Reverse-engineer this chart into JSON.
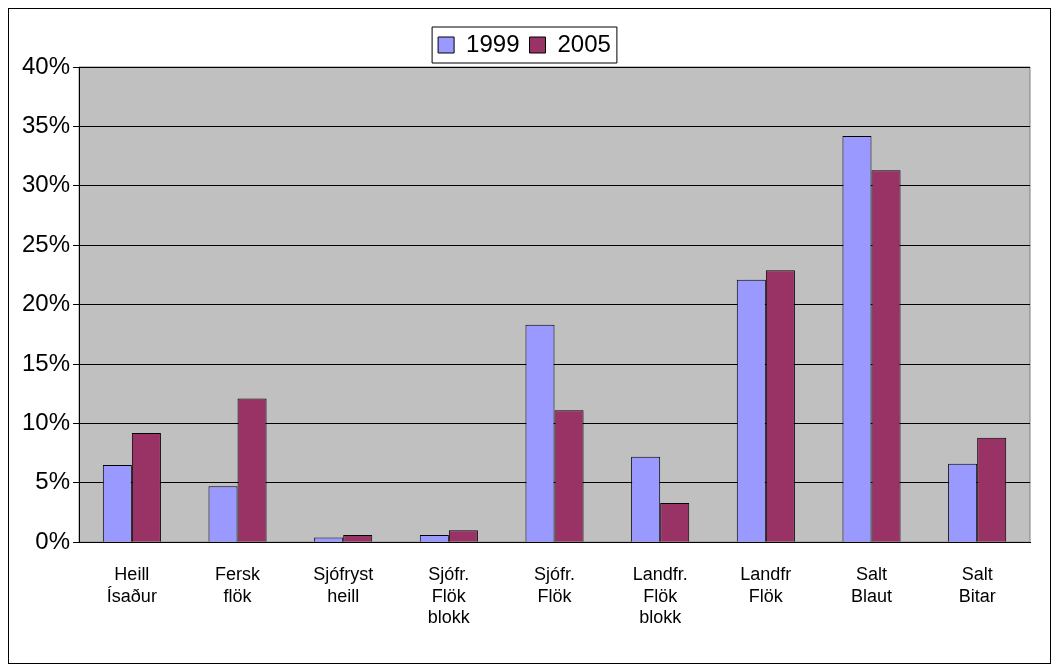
{
  "chart_data": {
    "type": "bar",
    "categories": [
      "Heill Ísaður",
      "Fersk flök",
      "Sjófryst heill",
      "Sjófr. Flök blokk",
      "Sjófr. Flök",
      "Landfr. Flök blokk",
      "Landfr Flök",
      "Salt Blaut",
      "Salt Bitar"
    ],
    "series": [
      {
        "name": "1999",
        "color": "#9999ff",
        "values": [
          6.5,
          4.7,
          0.4,
          0.6,
          18.3,
          7.2,
          22.1,
          34.2,
          6.6
        ]
      },
      {
        "name": "2005",
        "color": "#993366",
        "values": [
          9.2,
          12.1,
          0.6,
          1.0,
          11.1,
          3.3,
          22.9,
          31.3,
          8.8
        ]
      }
    ],
    "ylim": [
      0,
      40
    ],
    "yticks": [
      {
        "value": 0,
        "label": "0%"
      },
      {
        "value": 5,
        "label": "5%"
      },
      {
        "value": 10,
        "label": "10%"
      },
      {
        "value": 15,
        "label": "15%"
      },
      {
        "value": 20,
        "label": "20%"
      },
      {
        "value": 25,
        "label": "25%"
      },
      {
        "value": 30,
        "label": "30%"
      },
      {
        "value": 35,
        "label": "35%"
      },
      {
        "value": 40,
        "label": "40%"
      }
    ],
    "grid": "y",
    "legend": "top"
  }
}
